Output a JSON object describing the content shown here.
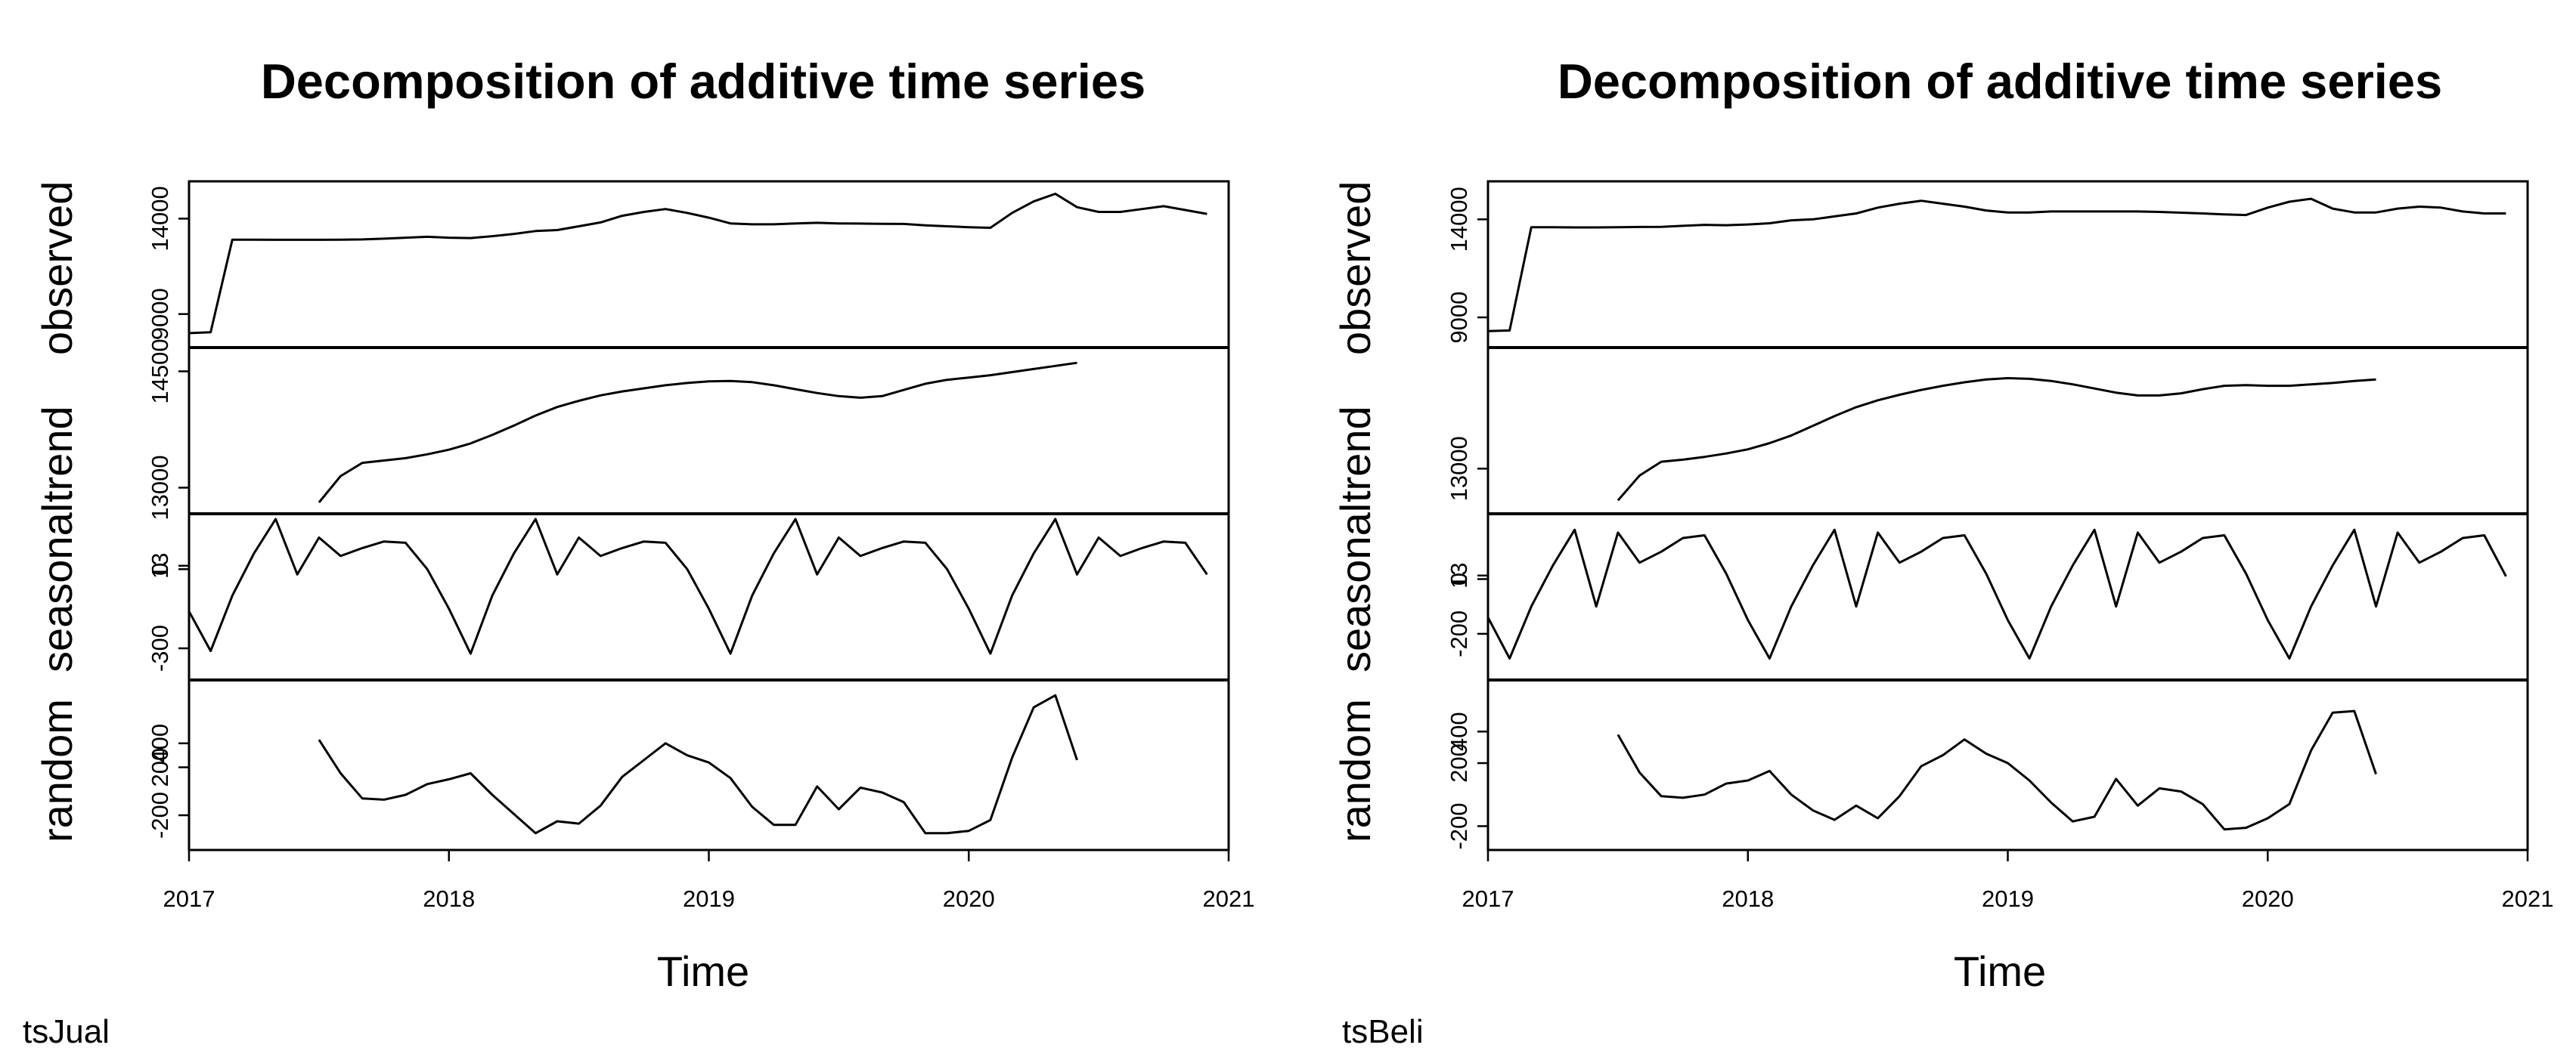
{
  "chart_data": [
    {
      "type": "line",
      "title": "Decomposition of additive time series",
      "xlabel": "Time",
      "caption": "tsJual",
      "x_ticks": [
        "2017",
        "2018",
        "2019",
        "2020",
        "2021"
      ],
      "xlim": [
        2017,
        2021
      ],
      "panels": [
        {
          "name": "observed",
          "ylim": [
            7800,
            15400
          ],
          "y_ticks": [
            "14000",
            "9000"
          ],
          "x": [
            2017.0,
            2017.0833,
            2017.1667,
            2017.25,
            2017.3333,
            2017.4167,
            2017.5,
            2017.5833,
            2017.6667,
            2017.75,
            2017.8333,
            2017.9167,
            2018.0,
            2018.0833,
            2018.1667,
            2018.25,
            2018.3333,
            2018.4167,
            2018.5,
            2018.5833,
            2018.6667,
            2018.75,
            2018.8333,
            2018.9167,
            2019.0,
            2019.0833,
            2019.1667,
            2019.25,
            2019.3333,
            2019.4167,
            2019.5,
            2019.5833,
            2019.6667,
            2019.75,
            2019.8333,
            2019.9167,
            2020.0,
            2020.0833,
            2020.1667,
            2020.25,
            2020.3333,
            2020.4167,
            2020.5,
            2020.5833,
            2020.6667,
            2020.75,
            2020.8333,
            2020.9167
          ],
          "values": [
            8000,
            8050,
            12900,
            12900,
            12890,
            12890,
            12890,
            12900,
            12910,
            12950,
            13000,
            13050,
            13000,
            12980,
            13080,
            13200,
            13350,
            13400,
            13600,
            13800,
            14150,
            14350,
            14500,
            14300,
            14050,
            13750,
            13700,
            13700,
            13750,
            13780,
            13750,
            13740,
            13730,
            13720,
            13650,
            13600,
            13550,
            13520,
            14300,
            14900,
            15300,
            14600,
            14350,
            14350,
            14500,
            14650,
            14450,
            14250
          ]
        },
        {
          "name": "trend",
          "ylim": [
            12800,
            14670
          ],
          "y_ticks": [
            "14500",
            "13000"
          ],
          "x": [
            2017.5,
            2017.5833,
            2017.6667,
            2017.75,
            2017.8333,
            2017.9167,
            2018.0,
            2018.0833,
            2018.1667,
            2018.25,
            2018.3333,
            2018.4167,
            2018.5,
            2018.5833,
            2018.6667,
            2018.75,
            2018.8333,
            2018.9167,
            2019.0,
            2019.0833,
            2019.1667,
            2019.25,
            2019.3333,
            2019.4167,
            2019.5,
            2019.5833,
            2019.6667,
            2019.75,
            2019.8333,
            2019.9167,
            2020.0,
            2020.0833,
            2020.1667,
            2020.25,
            2020.3333,
            2020.4167
          ],
          "values": [
            12810,
            13150,
            13320,
            13350,
            13380,
            13430,
            13490,
            13570,
            13680,
            13800,
            13930,
            14040,
            14120,
            14190,
            14240,
            14280,
            14320,
            14350,
            14370,
            14375,
            14360,
            14320,
            14270,
            14220,
            14180,
            14160,
            14180,
            14260,
            14340,
            14390,
            14420,
            14450,
            14490,
            14530,
            14570,
            14610
          ]
        },
        {
          "name": "seasonal",
          "ylim": [
            -380,
            170
          ],
          "y_ticks": [
            "13",
            "0",
            "-300"
          ],
          "x": [
            2017.0,
            2017.0833,
            2017.1667,
            2017.25,
            2017.3333,
            2017.4167,
            2017.5,
            2017.5833,
            2017.6667,
            2017.75,
            2017.8333,
            2017.9167,
            2018.0,
            2018.0833,
            2018.1667,
            2018.25,
            2018.3333,
            2018.4167,
            2018.5,
            2018.5833,
            2018.6667,
            2018.75,
            2018.8333,
            2018.9167,
            2019.0,
            2019.0833,
            2019.1667,
            2019.25,
            2019.3333,
            2019.4167,
            2019.5,
            2019.5833,
            2019.6667,
            2019.75,
            2019.8333,
            2019.9167,
            2020.0,
            2020.0833,
            2020.1667,
            2020.25,
            2020.3333,
            2020.4167,
            2020.5,
            2020.5833,
            2020.6667,
            2020.75,
            2020.8333,
            2020.9167
          ],
          "values": [
            -160,
            -310,
            -100,
            60,
            190,
            -20,
            120,
            50,
            80,
            105,
            100,
            0,
            -150,
            -320,
            -100,
            60,
            190,
            -20,
            120,
            50,
            80,
            105,
            100,
            0,
            -150,
            -320,
            -100,
            60,
            190,
            -20,
            120,
            50,
            80,
            105,
            100,
            0,
            -150,
            -320,
            -100,
            60,
            190,
            -20,
            120,
            50,
            80,
            105,
            100,
            -20
          ]
        },
        {
          "name": "random",
          "ylim": [
            -370,
            840
          ],
          "y_ticks": [
            "400",
            "200",
            "-200"
          ],
          "x": [
            2017.5,
            2017.5833,
            2017.6667,
            2017.75,
            2017.8333,
            2017.9167,
            2018.0,
            2018.0833,
            2018.1667,
            2018.25,
            2018.3333,
            2018.4167,
            2018.5,
            2018.5833,
            2018.6667,
            2018.75,
            2018.8333,
            2018.9167,
            2019.0,
            2019.0833,
            2019.1667,
            2019.25,
            2019.3333,
            2019.4167,
            2019.5,
            2019.5833,
            2019.6667,
            2019.75,
            2019.8333,
            2019.9167,
            2020.0,
            2020.0833,
            2020.1667,
            2020.25,
            2020.3333,
            2020.4167
          ],
          "values": [
            430,
            150,
            -60,
            -70,
            -30,
            60,
            100,
            150,
            -30,
            -190,
            -350,
            -250,
            -270,
            -120,
            120,
            260,
            400,
            300,
            240,
            110,
            -130,
            -280,
            -280,
            40,
            -150,
            30,
            -10,
            -90,
            -350,
            -350,
            -330,
            -240,
            280,
            700,
            800,
            260
          ]
        }
      ]
    },
    {
      "type": "line",
      "title": "Decomposition of additive time series",
      "xlabel": "Time",
      "caption": "tsBeli",
      "x_ticks": [
        "2017",
        "2018",
        "2019",
        "2020",
        "2021"
      ],
      "xlim": [
        2017,
        2021
      ],
      "panels": [
        {
          "name": "observed",
          "ylim": [
            8000,
            15400
          ],
          "y_ticks": [
            "14000",
            "9000"
          ],
          "x": [
            2017.0,
            2017.0833,
            2017.1667,
            2017.25,
            2017.3333,
            2017.4167,
            2017.5,
            2017.5833,
            2017.6667,
            2017.75,
            2017.8333,
            2017.9167,
            2018.0,
            2018.0833,
            2018.1667,
            2018.25,
            2018.3333,
            2018.4167,
            2018.5,
            2018.5833,
            2018.6667,
            2018.75,
            2018.8333,
            2018.9167,
            2019.0,
            2019.0833,
            2019.1667,
            2019.25,
            2019.3333,
            2019.4167,
            2019.5,
            2019.5833,
            2019.6667,
            2019.75,
            2019.8333,
            2019.9167,
            2020.0,
            2020.0833,
            2020.1667,
            2020.25,
            2020.3333,
            2020.4167,
            2020.5,
            2020.5833,
            2020.6667,
            2020.75,
            2020.8333,
            2020.9167
          ],
          "values": [
            8300,
            8330,
            13600,
            13600,
            13590,
            13590,
            13600,
            13610,
            13620,
            13670,
            13720,
            13700,
            13740,
            13800,
            13950,
            14000,
            14150,
            14300,
            14600,
            14800,
            14950,
            14800,
            14650,
            14450,
            14350,
            14350,
            14400,
            14400,
            14400,
            14400,
            14400,
            14380,
            14340,
            14300,
            14250,
            14220,
            14600,
            14900,
            15050,
            14550,
            14350,
            14350,
            14550,
            14650,
            14600,
            14400,
            14300,
            14300
          ]
        },
        {
          "name": "trend",
          "ylim": [
            12500,
            14600
          ],
          "y_ticks": [
            "13000"
          ],
          "x": [
            2017.5,
            2017.5833,
            2017.6667,
            2017.75,
            2017.8333,
            2017.9167,
            2018.0,
            2018.0833,
            2018.1667,
            2018.25,
            2018.3333,
            2018.4167,
            2018.5,
            2018.5833,
            2018.6667,
            2018.75,
            2018.8333,
            2018.9167,
            2019.0,
            2019.0833,
            2019.1667,
            2019.25,
            2019.3333,
            2019.4167,
            2019.5,
            2019.5833,
            2019.6667,
            2019.75,
            2019.8333,
            2019.9167,
            2020.0,
            2020.0833,
            2020.1667,
            2020.25,
            2020.3333,
            2020.4167
          ],
          "values": [
            12540,
            12900,
            13100,
            13130,
            13170,
            13220,
            13280,
            13370,
            13480,
            13620,
            13760,
            13890,
            13990,
            14070,
            14140,
            14200,
            14250,
            14290,
            14310,
            14300,
            14270,
            14220,
            14160,
            14100,
            14060,
            14060,
            14090,
            14150,
            14200,
            14210,
            14200,
            14200,
            14220,
            14240,
            14270,
            14290
          ]
        },
        {
          "name": "seasonal",
          "ylim": [
            -330,
            200
          ],
          "y_ticks": [
            "13",
            "0",
            "-200"
          ],
          "x": [
            2017.0,
            2017.0833,
            2017.1667,
            2017.25,
            2017.3333,
            2017.4167,
            2017.5,
            2017.5833,
            2017.6667,
            2017.75,
            2017.8333,
            2017.9167,
            2018.0,
            2018.0833,
            2018.1667,
            2018.25,
            2018.3333,
            2018.4167,
            2018.5,
            2018.5833,
            2018.6667,
            2018.75,
            2018.8333,
            2018.9167,
            2019.0,
            2019.0833,
            2019.1667,
            2019.25,
            2019.3333,
            2019.4167,
            2019.5,
            2019.5833,
            2019.6667,
            2019.75,
            2019.8333,
            2019.9167,
            2020.0,
            2020.0833,
            2020.1667,
            2020.25,
            2020.3333,
            2020.4167,
            2020.5,
            2020.5833,
            2020.6667,
            2020.75,
            2020.8333,
            2020.9167
          ],
          "values": [
            -140,
            -290,
            -100,
            50,
            180,
            -100,
            170,
            60,
            100,
            150,
            160,
            20,
            -150,
            -290,
            -100,
            50,
            180,
            -100,
            170,
            60,
            100,
            150,
            160,
            20,
            -150,
            -290,
            -100,
            50,
            180,
            -100,
            170,
            60,
            100,
            150,
            160,
            20,
            -150,
            -290,
            -100,
            50,
            180,
            -100,
            170,
            60,
            100,
            150,
            160,
            10
          ]
        },
        {
          "name": "random",
          "ylim": [
            -260,
            660
          ],
          "y_ticks": [
            "400",
            "200",
            "-200"
          ],
          "x": [
            2017.5,
            2017.5833,
            2017.6667,
            2017.75,
            2017.8333,
            2017.9167,
            2018.0,
            2018.0833,
            2018.1667,
            2018.25,
            2018.3333,
            2018.4167,
            2018.5,
            2018.5833,
            2018.6667,
            2018.75,
            2018.8333,
            2018.9167,
            2019.0,
            2019.0833,
            2019.1667,
            2019.25,
            2019.3333,
            2019.4167,
            2019.5,
            2019.5833,
            2019.6667,
            2019.75,
            2019.8333,
            2019.9167,
            2020.0,
            2020.0833,
            2020.1667,
            2020.25,
            2020.3333,
            2020.4167
          ],
          "values": [
            380,
            140,
            -10,
            -20,
            0,
            70,
            90,
            150,
            0,
            -100,
            -160,
            -70,
            -150,
            -10,
            180,
            250,
            350,
            260,
            200,
            90,
            -50,
            -170,
            -140,
            100,
            -70,
            40,
            20,
            -60,
            -220,
            -210,
            -150,
            -60,
            280,
            520,
            530,
            130
          ]
        }
      ]
    }
  ]
}
